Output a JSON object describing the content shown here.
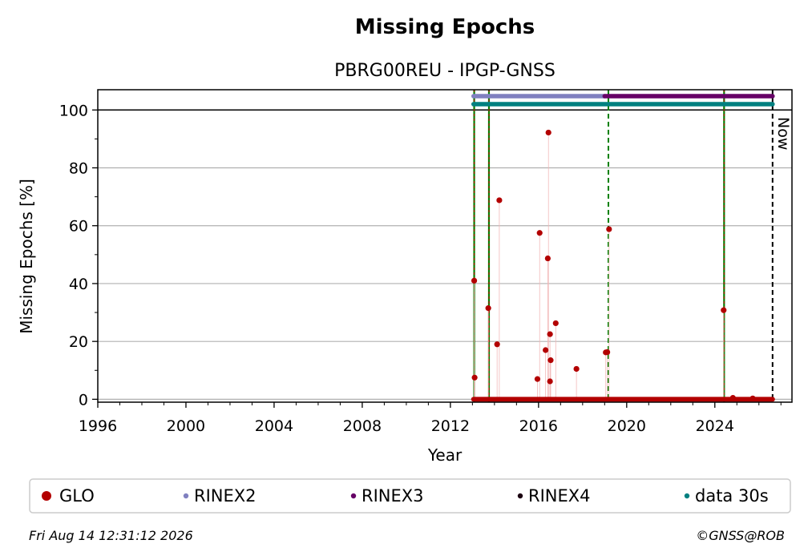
{
  "chart_data": {
    "type": "scatter",
    "title": "Missing Epochs",
    "subtitle": "PBRG00REU - IPGP-GNSS",
    "xlabel": "Year",
    "ylabel": "Missing Epochs [%]",
    "xlim": [
      1996,
      2027.5
    ],
    "ylim": [
      -1,
      107
    ],
    "x_ticks": [
      1996,
      2000,
      2004,
      2008,
      2012,
      2016,
      2020,
      2024
    ],
    "y_ticks": [
      0,
      20,
      40,
      60,
      80,
      100
    ],
    "grid": "horizontal",
    "now_label": "Now",
    "now_year": 2026.62,
    "event_lines": [
      {
        "year": 2013.08,
        "style": "solid-green-red"
      },
      {
        "year": 2013.75,
        "style": "solid-green-red"
      },
      {
        "year": 2019.17,
        "style": "dashed-green"
      },
      {
        "year": 2024.42,
        "style": "solid-green-red"
      }
    ],
    "series": [
      {
        "name": "GLO",
        "color": "#b30000",
        "points": [
          [
            2013.08,
            41
          ],
          [
            2013.1,
            7.5
          ],
          [
            2013.72,
            31.5
          ],
          [
            2014.12,
            19
          ],
          [
            2014.22,
            68.8
          ],
          [
            2015.95,
            7
          ],
          [
            2016.05,
            57.5
          ],
          [
            2016.32,
            17
          ],
          [
            2016.42,
            48.7
          ],
          [
            2016.45,
            92.2
          ],
          [
            2016.52,
            22.5
          ],
          [
            2016.55,
            13.5
          ],
          [
            2016.52,
            6.2
          ],
          [
            2016.78,
            26.3
          ],
          [
            2017.72,
            10.5
          ],
          [
            2019.05,
            16.2
          ],
          [
            2019.12,
            16.3
          ],
          [
            2019.2,
            58.8
          ],
          [
            2024.4,
            30.8
          ],
          [
            2024.82,
            0.5
          ],
          [
            2025.72,
            0.3
          ]
        ],
        "baseline": {
          "from": 2013.05,
          "to": 2026.62,
          "value": 0
        }
      },
      {
        "name": "RINEX2",
        "color": "#8080c0",
        "segments": [
          [
            2013.05,
            2019.0
          ]
        ]
      },
      {
        "name": "RINEX3",
        "color": "#660066",
        "segments": [
          [
            2019.0,
            2026.62
          ]
        ]
      },
      {
        "name": "RINEX4",
        "color": "#1a0010",
        "segments": []
      },
      {
        "name": "data 30s",
        "color": "#008080",
        "segments": [
          [
            2013.05,
            2026.62
          ]
        ]
      }
    ]
  },
  "footer": {
    "timestamp": "Fri Aug 14 12:31:12 2026",
    "credit": "©GNSS@ROB"
  }
}
